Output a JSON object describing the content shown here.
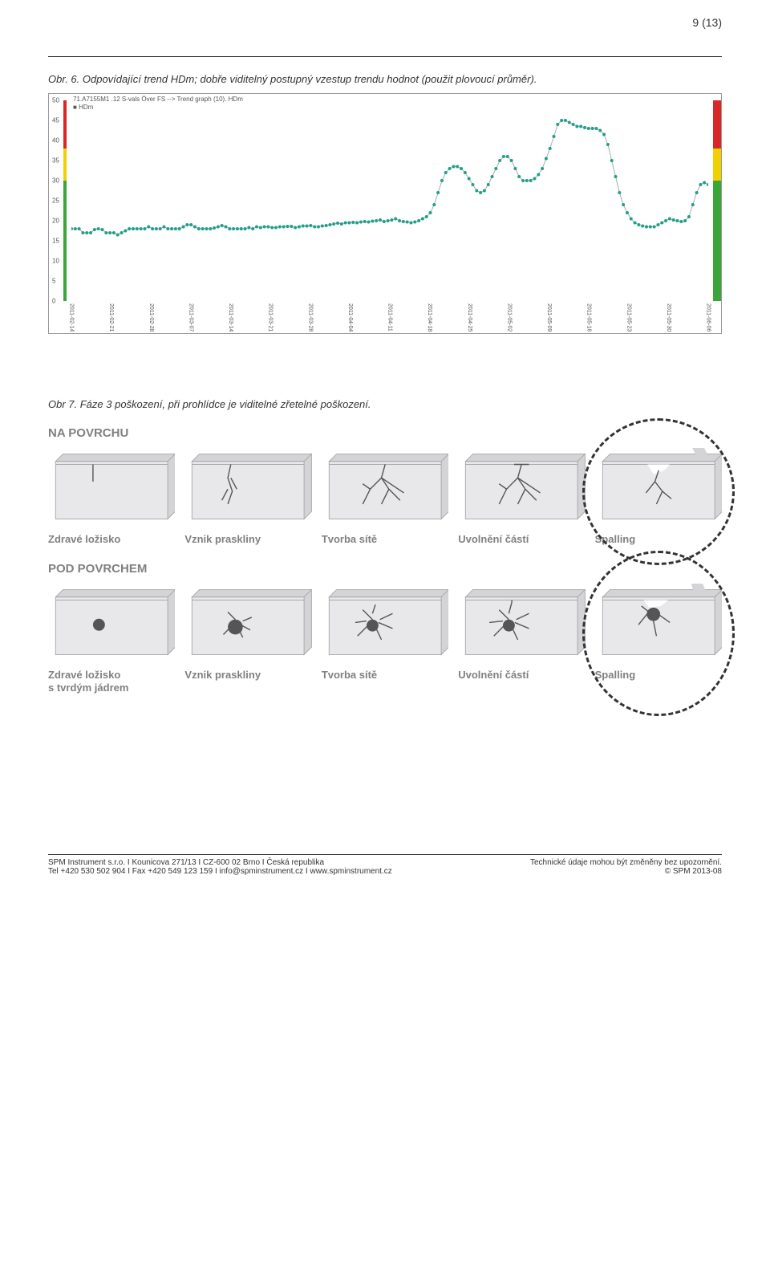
{
  "page_number": "9 (13)",
  "caption_fig6": "Obr. 6. Odpovídající trend HDm; dobře viditelný postupný vzestup trendu hodnot (použit plovoucí průměr).",
  "caption_fig7": "Obr 7. Fáze 3 poškození, při prohlídce je viditelné zřetelné poškození.",
  "chart": {
    "title": "71.A7155M1 .12 S-vals Över FS --> Trend graph (10). HDm",
    "legend": "HDm",
    "ylim": [
      0,
      50
    ],
    "ytick_step": 5,
    "series_color": "#1fa08a",
    "line_color": "#aaaaaa",
    "marker_radius": 2,
    "x_labels": [
      "2011-02-14",
      "2011-02-21",
      "2011-02-28",
      "2011-03-07",
      "2011-03-14",
      "2011-03-21",
      "2011-03-28",
      "2011-04-04",
      "2011-04-11",
      "2011-04-18",
      "2011-04-25",
      "2011-05-02",
      "2011-05-09",
      "2011-05-16",
      "2011-05-23",
      "2011-05-30",
      "2011-06-06"
    ],
    "data": [
      18,
      18,
      18,
      17,
      17,
      17,
      17.8,
      18,
      17.8,
      17,
      17,
      17,
      16.5,
      17,
      17.5,
      18,
      18,
      18,
      18,
      18,
      18.5,
      18,
      18,
      18,
      18.5,
      18,
      18,
      18,
      18,
      18.5,
      19,
      19,
      18.5,
      18,
      18,
      18,
      18,
      18.2,
      18.5,
      18.8,
      18.5,
      18,
      18,
      18,
      18,
      18,
      18.3,
      18,
      18.5,
      18.3,
      18.5,
      18.5,
      18.3,
      18.3,
      18.5,
      18.5,
      18.6,
      18.6,
      18.3,
      18.5,
      18.7,
      18.7,
      18.8,
      18.5,
      18.5,
      18.7,
      18.8,
      19,
      19.2,
      19.4,
      19.2,
      19.5,
      19.5,
      19.6,
      19.5,
      19.7,
      19.8,
      19.7,
      19.9,
      20,
      20.2,
      19.8,
      20,
      20.2,
      20.5,
      20,
      19.8,
      19.7,
      19.5,
      19.7,
      20,
      20.5,
      21,
      22,
      24,
      27,
      30,
      32,
      33,
      33.5,
      33.5,
      33,
      32,
      30.5,
      29,
      27.5,
      27,
      27.5,
      29,
      31,
      33,
      35,
      36,
      36,
      35,
      33,
      31,
      30,
      30,
      30,
      30.5,
      31.5,
      33,
      35.5,
      38,
      41,
      44,
      45,
      45,
      44.5,
      44,
      43.5,
      43.5,
      43.2,
      43,
      43,
      43,
      42.5,
      41.5,
      39,
      35,
      31,
      27,
      24,
      22,
      20.5,
      19.5,
      19,
      18.7,
      18.5,
      18.5,
      18.5,
      19,
      19.5,
      20,
      20.5,
      20.2,
      20,
      19.8,
      20,
      21,
      24,
      27,
      29,
      29.5,
      29
    ],
    "status_segments": [
      {
        "color": "#d92626",
        "height_pct": 24
      },
      {
        "color": "#f0d000",
        "height_pct": 16
      },
      {
        "color": "#3aa53a",
        "height_pct": 60
      }
    ]
  },
  "infographic": {
    "top_label": "NA POVRCHU",
    "bottom_label": "POD POVRCHEM",
    "captions_top": [
      "Zdravé ložisko",
      "Vznik praskliny",
      "Tvorba sítě",
      "Uvolnění částí",
      "Spalling"
    ],
    "captions_bot": [
      "Zdravé ložisko\ns tvrdým jádrem",
      "Vznik praskliny",
      "Tvorba sítě",
      "Uvolnění částí",
      "Spalling"
    ],
    "block_fill_top": "#e8e8ea",
    "block_fill_side": "#d4d4d6",
    "block_stroke": "#a8a8aa",
    "crack_color": "#555555"
  },
  "footer": {
    "left1": "SPM Instrument s.r.o. I Kounicova 271/13 I CZ-600 02 Brno I Česká republika",
    "left2": "Tel +420 530 502 904 I Fax +420 549 123 159 I info@spminstrument.cz I www.spminstrument.cz",
    "right1": "Technické údaje mohou být změněny bez upozornění.",
    "right2": "© SPM 2013-08"
  }
}
